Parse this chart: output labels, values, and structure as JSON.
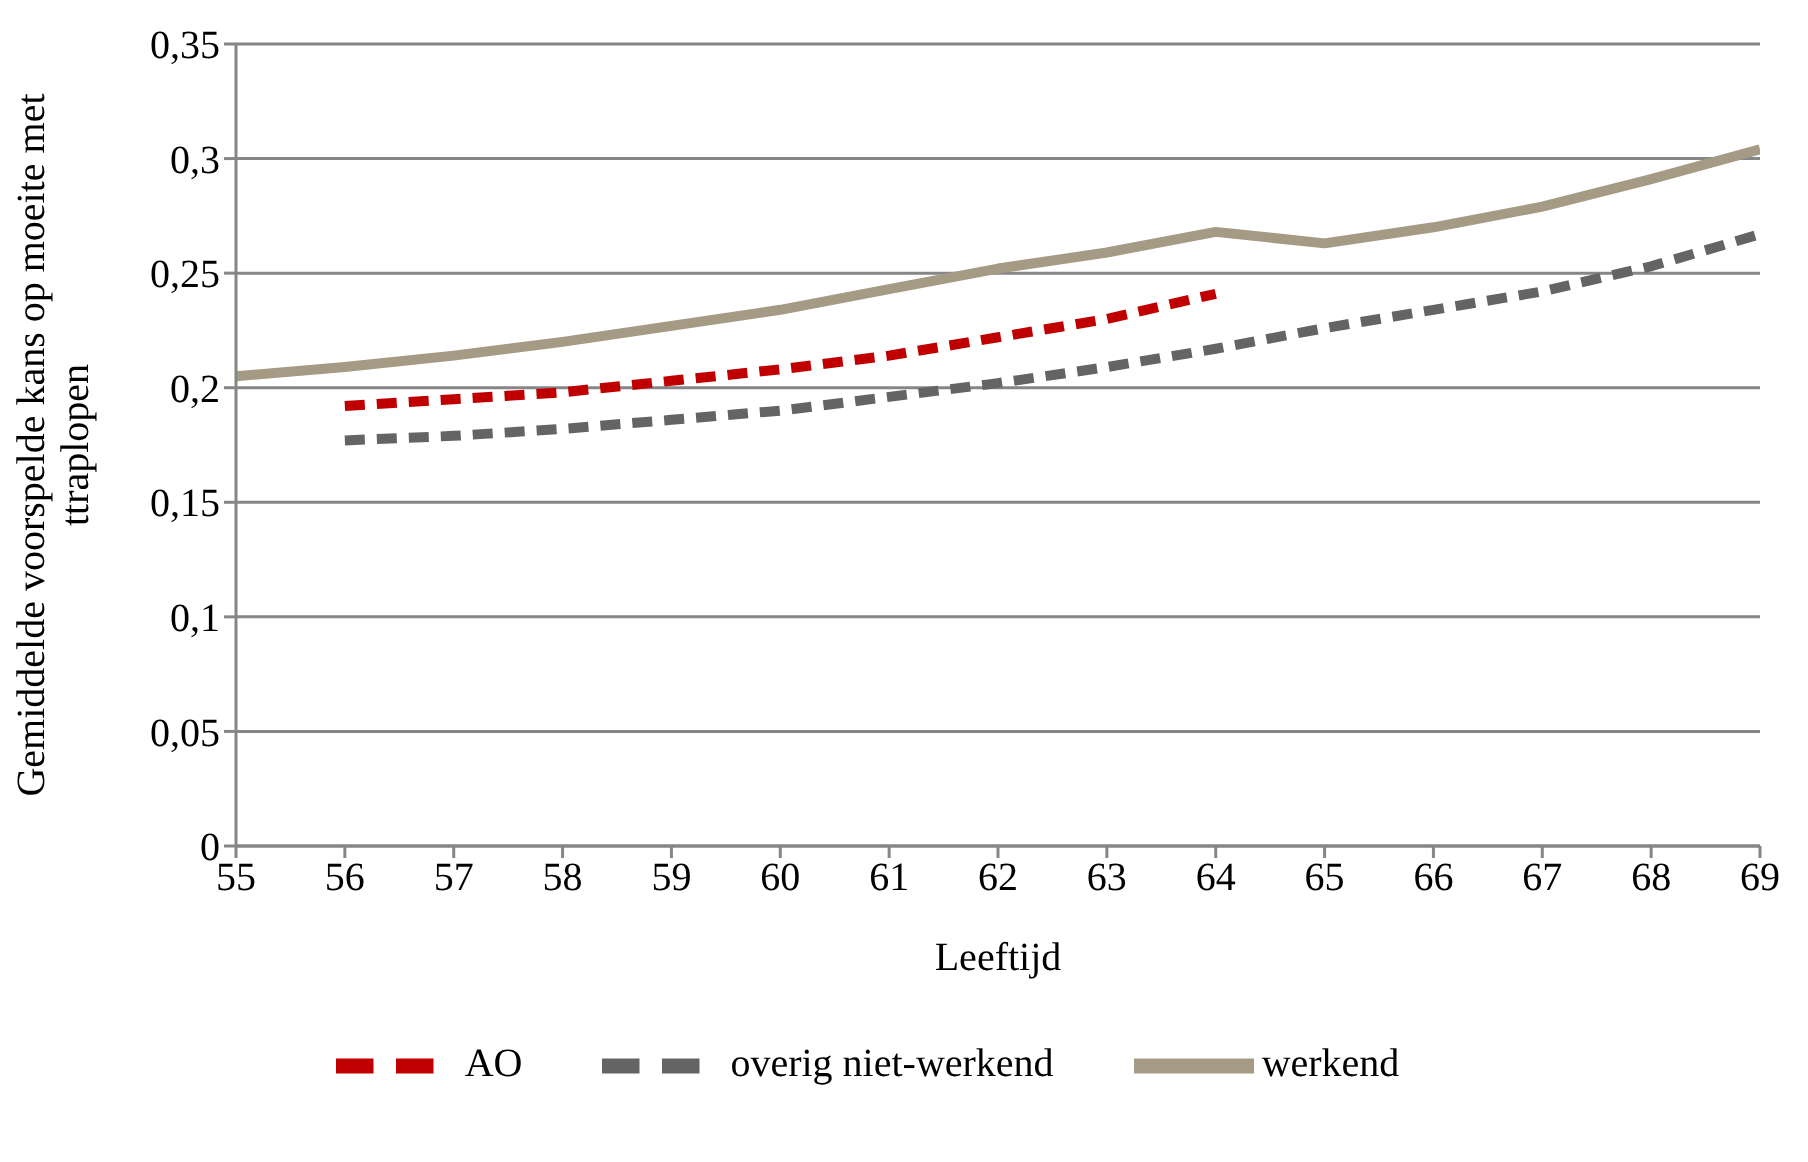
{
  "chart_data": {
    "type": "line",
    "xlabel": "Leeftijd",
    "ylabel": "Gemiddelde voorspelde kans op moeite met ttraplopen",
    "x": [
      55,
      56,
      57,
      58,
      59,
      60,
      61,
      62,
      63,
      64,
      65,
      66,
      67,
      68,
      69
    ],
    "series": [
      {
        "name": "AO",
        "color": "#c00000",
        "line_style": "dashed",
        "values": [
          null,
          0.192,
          0.195,
          0.198,
          0.203,
          0.208,
          0.214,
          0.222,
          0.23,
          0.241,
          null,
          null,
          null,
          null,
          null
        ]
      },
      {
        "name": "werkend",
        "color": "#a59b85",
        "line_style": "solid",
        "values": [
          0.205,
          0.209,
          0.214,
          0.22,
          0.227,
          0.234,
          0.243,
          0.252,
          0.259,
          0.268,
          0.263,
          0.27,
          0.279,
          0.291,
          0.304
        ]
      },
      {
        "name": "overig niet-werkend",
        "color": "#646464",
        "line_style": "dashed",
        "values": [
          null,
          0.177,
          0.179,
          0.182,
          0.186,
          0.19,
          0.196,
          0.202,
          0.209,
          0.217,
          0.226,
          0.234,
          0.242,
          0.253,
          0.267
        ]
      }
    ],
    "xlim": [
      55,
      69
    ],
    "xticks": [
      55,
      56,
      57,
      58,
      59,
      60,
      61,
      62,
      63,
      64,
      65,
      66,
      67,
      68,
      69
    ],
    "ylim": [
      0,
      0.35
    ],
    "yticks": [
      0,
      {
        "value": 0.05,
        "label": "0,05"
      },
      {
        "value": 0.1,
        "label": "0,1"
      },
      {
        "value": 0.15,
        "label": "0,15"
      },
      {
        "value": 0.2,
        "label": "0,2"
      },
      {
        "value": 0.25,
        "label": "0,25"
      },
      {
        "value": 0.3,
        "label": "0,3"
      },
      {
        "value": 0.35,
        "label": "0,35"
      }
    ],
    "grid": "y",
    "legend": "bottom",
    "marker": "none"
  }
}
